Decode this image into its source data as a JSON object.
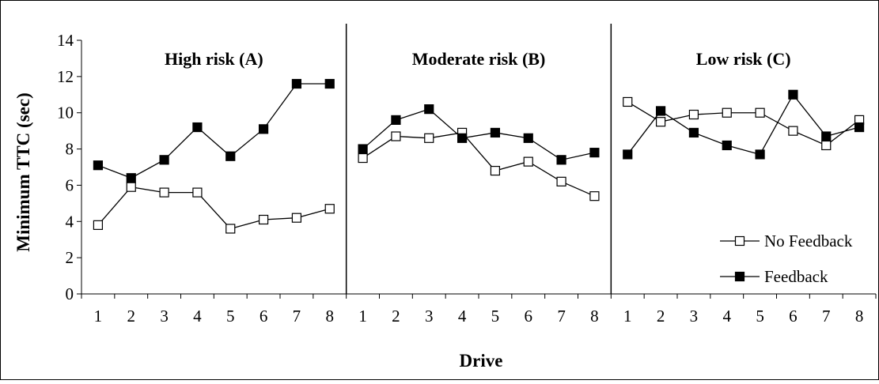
{
  "chart_data": {
    "type": "line",
    "xlabel": "Drive",
    "ylabel": "Minimum TTC (sec)",
    "ylim": [
      0,
      14
    ],
    "yticks": [
      "0",
      "2",
      "4",
      "6",
      "8",
      "10",
      "12",
      "14"
    ],
    "categories": [
      "1",
      "2",
      "3",
      "4",
      "5",
      "6",
      "7",
      "8"
    ],
    "grid": false,
    "legend_position": "bottom-right",
    "panels": [
      {
        "title": "High risk (A)",
        "series": [
          {
            "name": "No Feedback",
            "values": [
              3.8,
              5.9,
              5.6,
              5.6,
              3.6,
              4.1,
              4.2,
              4.7
            ]
          },
          {
            "name": "Feedback",
            "values": [
              7.1,
              6.4,
              7.4,
              9.2,
              7.6,
              9.1,
              11.6,
              11.6
            ]
          }
        ]
      },
      {
        "title": "Moderate risk (B)",
        "series": [
          {
            "name": "No Feedback",
            "values": [
              7.5,
              8.7,
              8.6,
              8.9,
              6.8,
              7.3,
              6.2,
              5.4
            ]
          },
          {
            "name": "Feedback",
            "values": [
              8.0,
              9.6,
              10.2,
              8.6,
              8.9,
              8.6,
              7.4,
              7.8
            ]
          }
        ]
      },
      {
        "title": "Low risk (C)",
        "series": [
          {
            "name": "No Feedback",
            "values": [
              10.6,
              9.5,
              9.9,
              10.0,
              10.0,
              9.0,
              8.2,
              9.6
            ]
          },
          {
            "name": "Feedback",
            "values": [
              7.7,
              10.1,
              8.9,
              8.2,
              7.7,
              11.0,
              8.7,
              9.2
            ]
          }
        ]
      }
    ],
    "legend": [
      {
        "name": "No Feedback",
        "marker": "hollow-square"
      },
      {
        "name": "Feedback",
        "marker": "filled-square"
      }
    ]
  }
}
